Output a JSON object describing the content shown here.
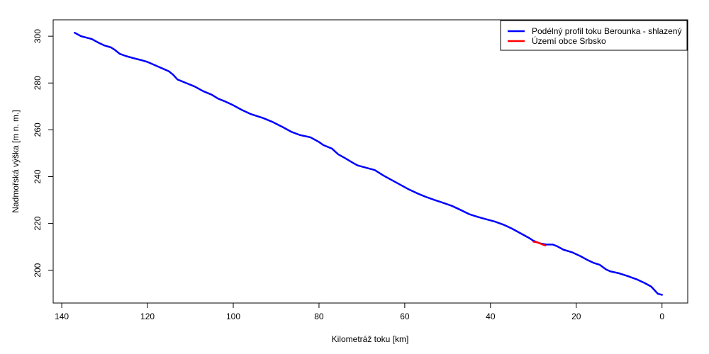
{
  "chart_data": {
    "type": "line",
    "xlabel": "Kilometráž toku [km]",
    "ylabel": "Nadmořská výška [m n. m.]",
    "xlim": [
      142,
      -6
    ],
    "ylim": [
      186,
      307
    ],
    "x_ticks": [
      140,
      120,
      100,
      80,
      60,
      40,
      20,
      0
    ],
    "y_ticks": [
      200,
      220,
      240,
      260,
      280,
      300
    ],
    "grid": false,
    "legend_position": "top-right",
    "series": [
      {
        "name": "Podélný profil toku Berounka - shlazený",
        "color": "#0000ff",
        "points": [
          [
            137,
            301.5
          ],
          [
            135.5,
            300.0
          ],
          [
            133,
            298.8
          ],
          [
            131.5,
            297.3
          ],
          [
            130,
            296.0
          ],
          [
            128.5,
            295.2
          ],
          [
            127.5,
            294.0
          ],
          [
            126.5,
            292.5
          ],
          [
            125,
            291.5
          ],
          [
            123,
            290.5
          ],
          [
            121.5,
            289.8
          ],
          [
            120,
            289.0
          ],
          [
            117.5,
            287.0
          ],
          [
            116,
            285.8
          ],
          [
            115,
            285.0
          ],
          [
            114,
            283.5
          ],
          [
            113,
            281.5
          ],
          [
            111,
            280.0
          ],
          [
            109,
            278.5
          ],
          [
            107,
            276.5
          ],
          [
            105,
            275.0
          ],
          [
            103.5,
            273.3
          ],
          [
            102,
            272.2
          ],
          [
            100,
            270.5
          ],
          [
            98,
            268.5
          ],
          [
            96,
            266.8
          ],
          [
            93,
            265.0
          ],
          [
            91,
            263.5
          ],
          [
            88.5,
            261.2
          ],
          [
            86.5,
            259.2
          ],
          [
            84.5,
            257.8
          ],
          [
            82,
            256.8
          ],
          [
            81,
            255.8
          ],
          [
            80,
            254.8
          ],
          [
            79,
            253.5
          ],
          [
            77,
            252.0
          ],
          [
            75.5,
            249.5
          ],
          [
            74,
            248.0
          ],
          [
            72,
            245.8
          ],
          [
            71,
            244.8
          ],
          [
            69,
            243.8
          ],
          [
            67,
            242.8
          ],
          [
            65,
            240.5
          ],
          [
            63,
            238.5
          ],
          [
            61,
            236.5
          ],
          [
            59,
            234.5
          ],
          [
            57,
            232.8
          ],
          [
            55,
            231.3
          ],
          [
            53,
            230.0
          ],
          [
            51,
            228.8
          ],
          [
            49,
            227.5
          ],
          [
            47,
            225.8
          ],
          [
            45,
            224.0
          ],
          [
            43,
            222.8
          ],
          [
            41,
            221.8
          ],
          [
            39,
            220.8
          ],
          [
            37,
            219.5
          ],
          [
            35,
            217.8
          ],
          [
            33,
            215.8
          ],
          [
            31,
            213.8
          ],
          [
            30,
            212.6
          ],
          [
            28.5,
            211.5
          ],
          [
            27,
            211.0
          ],
          [
            25.5,
            211.0
          ],
          [
            24.5,
            210.3
          ],
          [
            23,
            208.8
          ],
          [
            21,
            207.7
          ],
          [
            19,
            206.0
          ],
          [
            17.5,
            204.5
          ],
          [
            16,
            203.2
          ],
          [
            14.5,
            202.3
          ],
          [
            13,
            200.3
          ],
          [
            12,
            199.5
          ],
          [
            10,
            198.7
          ],
          [
            8,
            197.5
          ],
          [
            6,
            196.2
          ],
          [
            4,
            194.5
          ],
          [
            2.5,
            193.0
          ],
          [
            1,
            190.0
          ],
          [
            0,
            189.5
          ]
        ]
      },
      {
        "name": "Území obce Srbsko",
        "color": "#ff0000",
        "points": [
          [
            30,
            212.2
          ],
          [
            29,
            211.9
          ],
          [
            28,
            211.1
          ],
          [
            27.2,
            210.6
          ]
        ]
      }
    ]
  }
}
